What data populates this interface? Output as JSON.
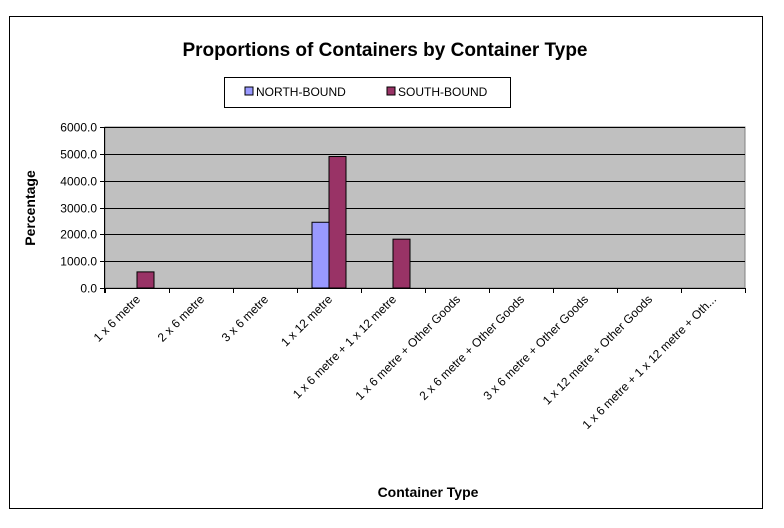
{
  "colors": {
    "plot_background": "#c0c0c0",
    "north_bound": "#9999ff",
    "south_bound": "#993366",
    "gridline": "#000000"
  },
  "chart_data": {
    "type": "bar",
    "title": "Proportions of Containers by Container Type",
    "xlabel": "Container Type",
    "ylabel": "Percentage",
    "ylim": [
      0,
      6000
    ],
    "yticks": [
      "0.0",
      "1000.0",
      "2000.0",
      "3000.0",
      "4000.0",
      "5000.0",
      "6000.0"
    ],
    "grid": true,
    "legend_position": "top",
    "categories": [
      "1 x 6 metre",
      "2 x 6 metre",
      "3 x 6 metre",
      "1 x 12 metre",
      "1 x 6 metre + 1 x 12 metre",
      "1 x 6 metre + Other Goods",
      "2 x 6 metre + Other Goods",
      "3 x 6 metre + Other Goods",
      "1 x 12 metre + Other Goods",
      "1 x 6 metre + 1 x 12 metre + Oth..."
    ],
    "series": [
      {
        "name": "NORTH-BOUND",
        "values": [
          0,
          0,
          0,
          2450,
          0,
          0,
          0,
          0,
          0,
          0
        ]
      },
      {
        "name": "SOUTH-BOUND",
        "values": [
          600,
          0,
          0,
          4900,
          1820,
          0,
          0,
          0,
          0,
          0
        ]
      }
    ]
  }
}
